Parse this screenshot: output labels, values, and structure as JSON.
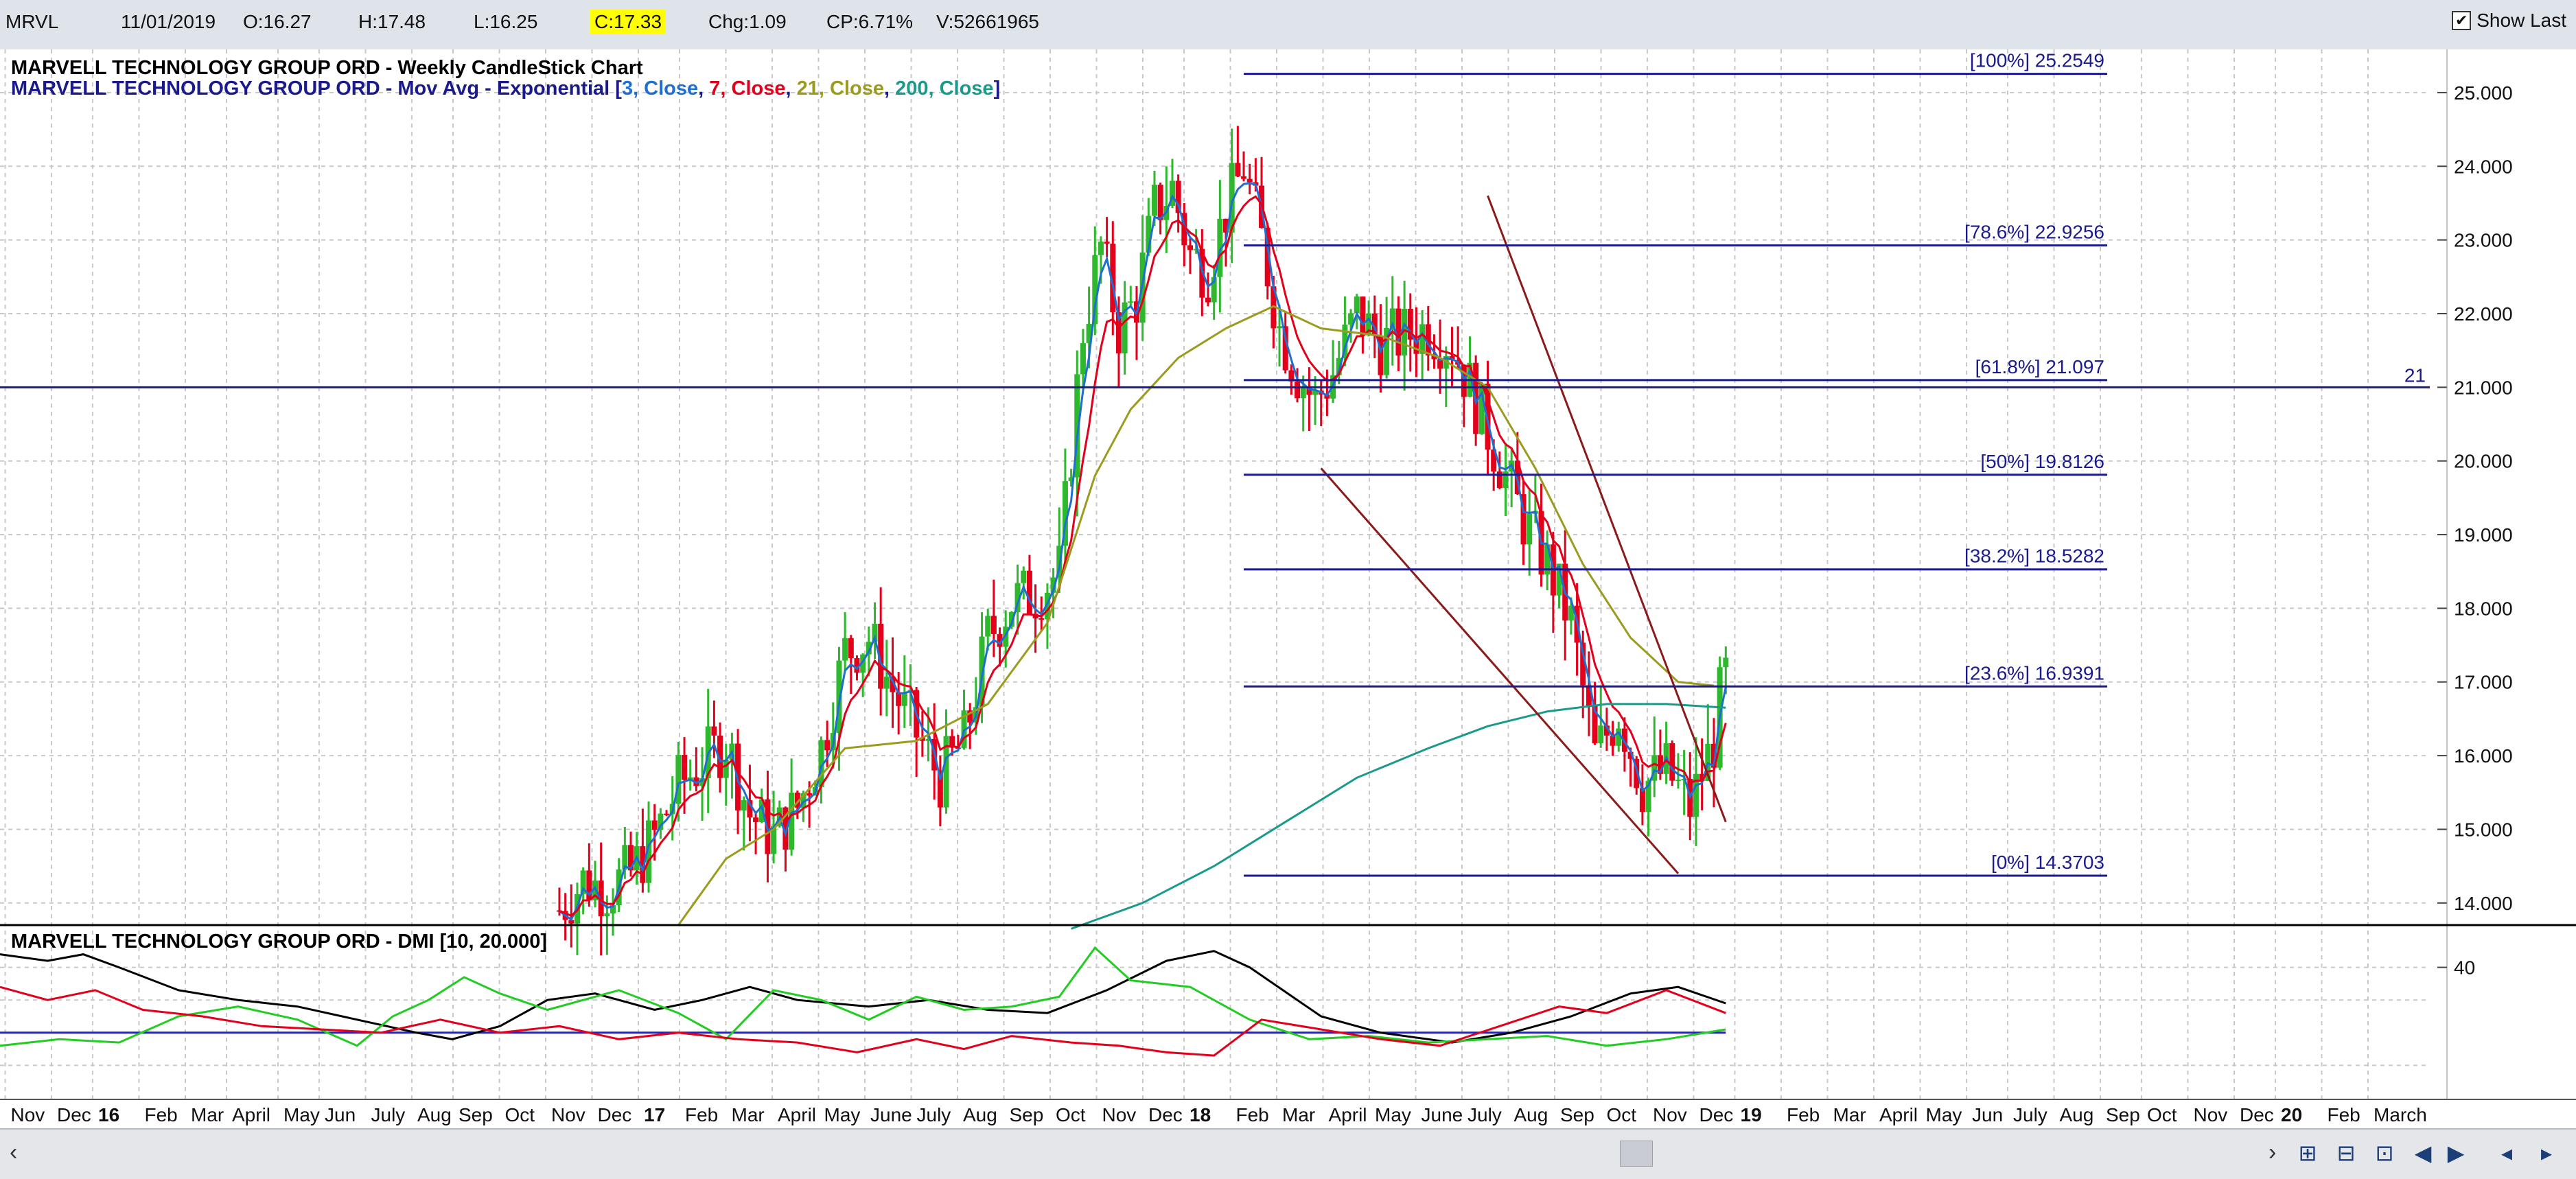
{
  "quote": {
    "symbol": "MRVL",
    "date": "11/01/2019",
    "open": "O:16.27",
    "high": "H:17.48",
    "low": "L:16.25",
    "close": "C:17.33",
    "change": "Chg:1.09",
    "change_pct": "CP:6.71%",
    "volume": "V:52661965"
  },
  "show_last": {
    "label": "Show Last",
    "checked": true
  },
  "colors": {
    "background": "#ffffff",
    "grid": "#c9c9c9",
    "up_candle": "#2db82d",
    "down_candle": "#e3001b",
    "ema3": "#1f6fd1",
    "ema7": "#e3001b",
    "ema21": "#9b9b1f",
    "ema200": "#1a9a8a",
    "fib_lines": "#1a1a8c",
    "trendline": "#8b1a1a",
    "dmi_adx": "#000000",
    "dmi_plus": "#22cc22",
    "dmi_minus": "#e3001b",
    "dmi_ref": "#2222cc"
  },
  "chart_data": [
    {
      "type": "candlestick",
      "title": "MARVELL TECHNOLOGY GROUP ORD - Weekly CandleStick Chart",
      "subtitle_prefix": "MARVELL TECHNOLOGY GROUP ORD - Mov Avg - Exponential [",
      "subtitle_parts": [
        {
          "text": "3, Close",
          "color": "#1f6fd1"
        },
        {
          "text": "7, Close",
          "color": "#e3001b"
        },
        {
          "text": "21, Close",
          "color": "#9b9b1f"
        },
        {
          "text": "200, Close",
          "color": "#1a9a8a"
        }
      ],
      "subtitle_suffix": "]",
      "y_range": [
        13.7,
        25.4
      ],
      "y_ticks": [
        "25.000",
        "24.000",
        "23.000",
        "22.000",
        "21.000",
        "20.000",
        "19.000",
        "18.000",
        "17.000",
        "16.000",
        "15.000",
        "14.000"
      ],
      "y_tick_values": [
        25,
        24,
        23,
        22,
        21,
        20,
        19,
        18,
        17,
        16,
        15,
        14
      ],
      "horizontal_line": {
        "value": 21,
        "label": "21"
      },
      "fibonacci": [
        {
          "label": "[100%] 25.2549",
          "value": 25.2549
        },
        {
          "label": "[78.6%] 22.9256",
          "value": 22.9256
        },
        {
          "label": "[61.8%] 21.097",
          "value": 21.097
        },
        {
          "label": "[50%] 19.8126",
          "value": 19.8126
        },
        {
          "label": "[38.2%] 18.5282",
          "value": 18.5282
        },
        {
          "label": "[23.6%] 16.9391",
          "value": 16.9391
        },
        {
          "label": "[0%] 14.3703",
          "value": 14.3703
        }
      ],
      "fib_start_week": 209,
      "candles_start_week": 94,
      "close_path": [
        [
          94,
          13.9
        ],
        [
          98,
          14.3
        ],
        [
          102,
          14.2
        ],
        [
          106,
          14.4
        ],
        [
          110,
          14.9
        ],
        [
          114,
          15.6
        ],
        [
          118,
          15.9
        ],
        [
          122,
          16.2
        ],
        [
          126,
          15.2
        ],
        [
          130,
          14.9
        ],
        [
          134,
          15.3
        ],
        [
          138,
          16.1
        ],
        [
          142,
          17.4
        ],
        [
          146,
          17.6
        ],
        [
          150,
          16.9
        ],
        [
          154,
          16.3
        ],
        [
          158,
          15.7
        ],
        [
          162,
          16.2
        ],
        [
          166,
          17.6
        ],
        [
          170,
          18.1
        ],
        [
          174,
          18.2
        ],
        [
          178,
          18.5
        ],
        [
          182,
          21.8
        ],
        [
          185,
          22.9
        ],
        [
          188,
          21.8
        ],
        [
          191,
          22.2
        ],
        [
          194,
          23.4
        ],
        [
          197,
          23.7
        ],
        [
          200,
          22.8
        ],
        [
          203,
          22.6
        ],
        [
          206,
          23.4
        ],
        [
          209,
          24.0
        ],
        [
          212,
          23.0
        ],
        [
          215,
          21.8
        ],
        [
          218,
          21.2
        ],
        [
          221,
          20.8
        ],
        [
          224,
          21.2
        ],
        [
          228,
          22.0
        ],
        [
          232,
          21.6
        ],
        [
          236,
          21.7
        ],
        [
          240,
          21.8
        ],
        [
          244,
          21.6
        ],
        [
          248,
          20.8
        ],
        [
          252,
          20.0
        ],
        [
          256,
          19.2
        ],
        [
          260,
          18.6
        ],
        [
          264,
          17.8
        ],
        [
          268,
          16.0
        ],
        [
          272,
          16.6
        ],
        [
          276,
          15.6
        ],
        [
          280,
          15.8
        ],
        [
          284,
          15.3
        ],
        [
          288,
          16.2
        ],
        [
          290,
          17.33
        ]
      ],
      "ema21_path": [
        [
          114,
          13.7
        ],
        [
          122,
          14.6
        ],
        [
          130,
          15.0
        ],
        [
          142,
          16.1
        ],
        [
          154,
          16.2
        ],
        [
          166,
          16.7
        ],
        [
          176,
          17.8
        ],
        [
          184,
          19.8
        ],
        [
          190,
          20.7
        ],
        [
          198,
          21.4
        ],
        [
          206,
          21.8
        ],
        [
          214,
          22.1
        ],
        [
          222,
          21.8
        ],
        [
          232,
          21.7
        ],
        [
          242,
          21.4
        ],
        [
          250,
          21.0
        ],
        [
          258,
          19.9
        ],
        [
          266,
          18.6
        ],
        [
          274,
          17.6
        ],
        [
          282,
          17.0
        ],
        [
          288,
          16.95
        ]
      ],
      "ema200_path": [
        [
          180,
          13.65
        ],
        [
          192,
          14.0
        ],
        [
          204,
          14.5
        ],
        [
          216,
          15.1
        ],
        [
          228,
          15.7
        ],
        [
          240,
          16.1
        ],
        [
          250,
          16.4
        ],
        [
          260,
          16.6
        ],
        [
          270,
          16.7
        ],
        [
          280,
          16.7
        ],
        [
          290,
          16.65
        ]
      ],
      "trendlines": [
        {
          "from": [
            222,
            19.9
          ],
          "to": [
            282,
            14.4
          ]
        },
        {
          "from": [
            250,
            23.6
          ],
          "to": [
            290,
            15.1
          ]
        }
      ]
    },
    {
      "type": "line",
      "title": "MARVELL TECHNOLOGY GROUP ORD - DMI [10, 20.000]",
      "y_range": [
        0,
        50
      ],
      "y_tick_label": "40",
      "y_tick_value": 40,
      "reference_line": 20,
      "series": [
        {
          "name": "ADX",
          "points": [
            [
              0,
              44
            ],
            [
              8,
              42
            ],
            [
              14,
              44
            ],
            [
              20,
              40
            ],
            [
              30,
              33
            ],
            [
              40,
              30
            ],
            [
              50,
              28
            ],
            [
              60,
              24
            ],
            [
              70,
              20
            ],
            [
              76,
              18
            ],
            [
              84,
              22
            ],
            [
              92,
              30
            ],
            [
              100,
              32
            ],
            [
              110,
              27
            ],
            [
              118,
              30
            ],
            [
              126,
              34
            ],
            [
              134,
              30
            ],
            [
              146,
              28
            ],
            [
              156,
              30
            ],
            [
              166,
              27
            ],
            [
              176,
              26
            ],
            [
              186,
              33
            ],
            [
              196,
              42
            ],
            [
              204,
              45
            ],
            [
              210,
              40
            ],
            [
              222,
              25
            ],
            [
              232,
              20
            ],
            [
              244,
              17
            ],
            [
              254,
              20
            ],
            [
              264,
              25
            ],
            [
              274,
              32
            ],
            [
              282,
              34
            ],
            [
              290,
              29
            ]
          ]
        },
        {
          "name": "+DI",
          "points": [
            [
              0,
              16
            ],
            [
              10,
              18
            ],
            [
              20,
              17
            ],
            [
              30,
              25
            ],
            [
              40,
              28
            ],
            [
              50,
              24
            ],
            [
              60,
              16
            ],
            [
              66,
              25
            ],
            [
              72,
              30
            ],
            [
              78,
              37
            ],
            [
              84,
              32
            ],
            [
              92,
              27
            ],
            [
              98,
              30
            ],
            [
              104,
              33
            ],
            [
              114,
              26
            ],
            [
              122,
              18
            ],
            [
              130,
              33
            ],
            [
              138,
              30
            ],
            [
              146,
              24
            ],
            [
              154,
              31
            ],
            [
              162,
              27
            ],
            [
              170,
              28
            ],
            [
              178,
              31
            ],
            [
              184,
              46
            ],
            [
              190,
              36
            ],
            [
              200,
              34
            ],
            [
              210,
              24
            ],
            [
              220,
              18
            ],
            [
              230,
              19
            ],
            [
              240,
              17
            ],
            [
              250,
              18
            ],
            [
              260,
              19
            ],
            [
              270,
              16
            ],
            [
              280,
              18
            ],
            [
              290,
              21
            ]
          ]
        },
        {
          "name": "-DI",
          "points": [
            [
              0,
              34
            ],
            [
              8,
              30
            ],
            [
              16,
              33
            ],
            [
              24,
              27
            ],
            [
              34,
              25
            ],
            [
              44,
              22
            ],
            [
              54,
              21
            ],
            [
              64,
              20
            ],
            [
              74,
              24
            ],
            [
              84,
              20
            ],
            [
              94,
              22
            ],
            [
              104,
              18
            ],
            [
              114,
              20
            ],
            [
              124,
              18
            ],
            [
              134,
              17
            ],
            [
              144,
              14
            ],
            [
              154,
              18
            ],
            [
              162,
              15
            ],
            [
              170,
              19
            ],
            [
              180,
              17
            ],
            [
              188,
              16
            ],
            [
              196,
              14
            ],
            [
              204,
              13
            ],
            [
              212,
              24
            ],
            [
              222,
              21
            ],
            [
              232,
              18
            ],
            [
              242,
              16
            ],
            [
              252,
              22
            ],
            [
              262,
              28
            ],
            [
              270,
              26
            ],
            [
              280,
              33
            ],
            [
              290,
              26
            ]
          ]
        }
      ]
    }
  ],
  "x_axis": {
    "labels": [
      {
        "text": "Nov",
        "week": 0.5,
        "major": false
      },
      {
        "text": "Dec",
        "week": 5,
        "major": false
      },
      {
        "text": "16",
        "week": 9,
        "major": true
      },
      {
        "text": "Feb",
        "week": 13.5,
        "major": false
      },
      {
        "text": "Mar",
        "week": 18,
        "major": false
      },
      {
        "text": "April",
        "week": 22,
        "major": false
      },
      {
        "text": "May",
        "week": 27,
        "major": false
      },
      {
        "text": "Jun",
        "week": 31,
        "major": false
      },
      {
        "text": "July",
        "week": 35.5,
        "major": false
      },
      {
        "text": "Aug",
        "week": 40,
        "major": false
      },
      {
        "text": "Sep",
        "week": 44,
        "major": false
      },
      {
        "text": "Oct",
        "week": 48.5,
        "major": false
      },
      {
        "text": "Nov",
        "week": 53,
        "major": false
      },
      {
        "text": "Dec",
        "week": 57.5,
        "major": false
      },
      {
        "text": "17",
        "week": 62,
        "major": true
      },
      {
        "text": "Feb",
        "week": 66,
        "major": false
      },
      {
        "text": "Mar",
        "week": 70.5,
        "major": false
      },
      {
        "text": "April",
        "week": 75,
        "major": false
      },
      {
        "text": "May",
        "week": 79.5,
        "major": false
      },
      {
        "text": "June",
        "week": 84,
        "major": false
      },
      {
        "text": "July",
        "week": 88.5,
        "major": false
      },
      {
        "text": "Aug",
        "week": 93,
        "major": false
      },
      {
        "text": "Sep",
        "week": 97.5,
        "major": false
      },
      {
        "text": "Oct",
        "week": 102,
        "major": false
      },
      {
        "text": "Nov",
        "week": 106.5,
        "major": false
      },
      {
        "text": "Dec",
        "week": 111,
        "major": false
      },
      {
        "text": "18",
        "week": 115,
        "major": true
      },
      {
        "text": "Feb",
        "week": 119.5,
        "major": false
      },
      {
        "text": "Mar",
        "week": 124,
        "major": false
      },
      {
        "text": "April",
        "week": 128.5,
        "major": false
      },
      {
        "text": "May",
        "week": 133,
        "major": false
      },
      {
        "text": "June",
        "week": 137.5,
        "major": false
      },
      {
        "text": "July",
        "week": 142,
        "major": false
      },
      {
        "text": "Aug",
        "week": 146.5,
        "major": false
      },
      {
        "text": "Sep",
        "week": 151,
        "major": false
      },
      {
        "text": "Oct",
        "week": 155.5,
        "major": false
      },
      {
        "text": "Nov",
        "week": 160,
        "major": false
      },
      {
        "text": "Dec",
        "week": 164.5,
        "major": false
      },
      {
        "text": "19",
        "week": 168.5,
        "major": true
      },
      {
        "text": "Feb",
        "week": 173,
        "major": false
      },
      {
        "text": "Mar",
        "week": 177.5,
        "major": false
      },
      {
        "text": "April",
        "week": 182,
        "major": false
      },
      {
        "text": "May",
        "week": 186.5,
        "major": false
      },
      {
        "text": "Jun",
        "week": 191,
        "major": false
      },
      {
        "text": "July",
        "week": 195,
        "major": false
      },
      {
        "text": "Aug",
        "week": 199.5,
        "major": false
      },
      {
        "text": "Sep",
        "week": 204,
        "major": false
      },
      {
        "text": "Oct",
        "week": 208,
        "major": false
      },
      {
        "text": "Nov",
        "week": 212.5,
        "major": false
      },
      {
        "text": "Dec",
        "week": 217,
        "major": false
      },
      {
        "text": "20",
        "week": 221,
        "major": true
      },
      {
        "text": "Feb",
        "week": 225.5,
        "major": false
      },
      {
        "text": "March",
        "week": 230,
        "major": false
      }
    ]
  },
  "nav_icons": [
    "scroll-left-icon",
    "scroll-right-icon",
    "zoom-in-icon",
    "zoom-out-icon",
    "zoom-reset-icon",
    "page-left-icon",
    "page-right-icon"
  ]
}
